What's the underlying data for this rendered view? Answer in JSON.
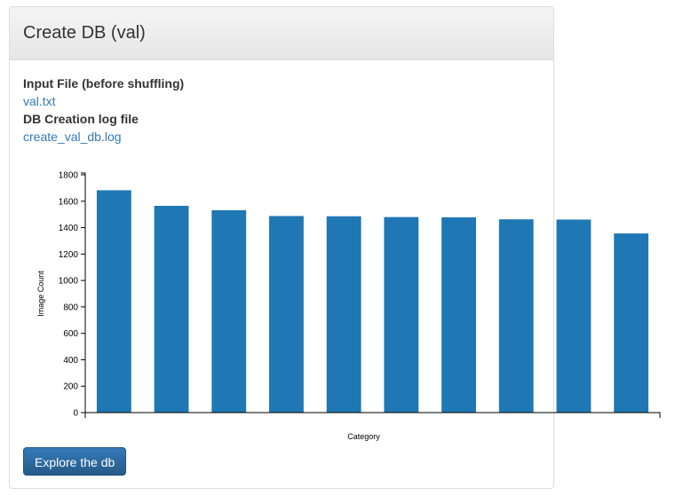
{
  "panel": {
    "title": "Create DB (val)"
  },
  "fields": {
    "input_label": "Input File (before shuffling)",
    "input_link": "val.txt",
    "log_label": "DB Creation log file",
    "log_link": "create_val_db.log"
  },
  "chart_data": {
    "type": "bar",
    "title": "",
    "xlabel": "Category",
    "ylabel": "Image Count",
    "ylim": [
      0,
      1800
    ],
    "yticks": [
      0,
      200,
      400,
      600,
      800,
      1000,
      1200,
      1400,
      1600,
      1800
    ],
    "grid": false,
    "bar_color": "#1f77b4",
    "values": [
      1683,
      1565,
      1532,
      1488,
      1486,
      1480,
      1478,
      1463,
      1461,
      1356
    ]
  },
  "actions": {
    "explore_label": "Explore the db"
  }
}
